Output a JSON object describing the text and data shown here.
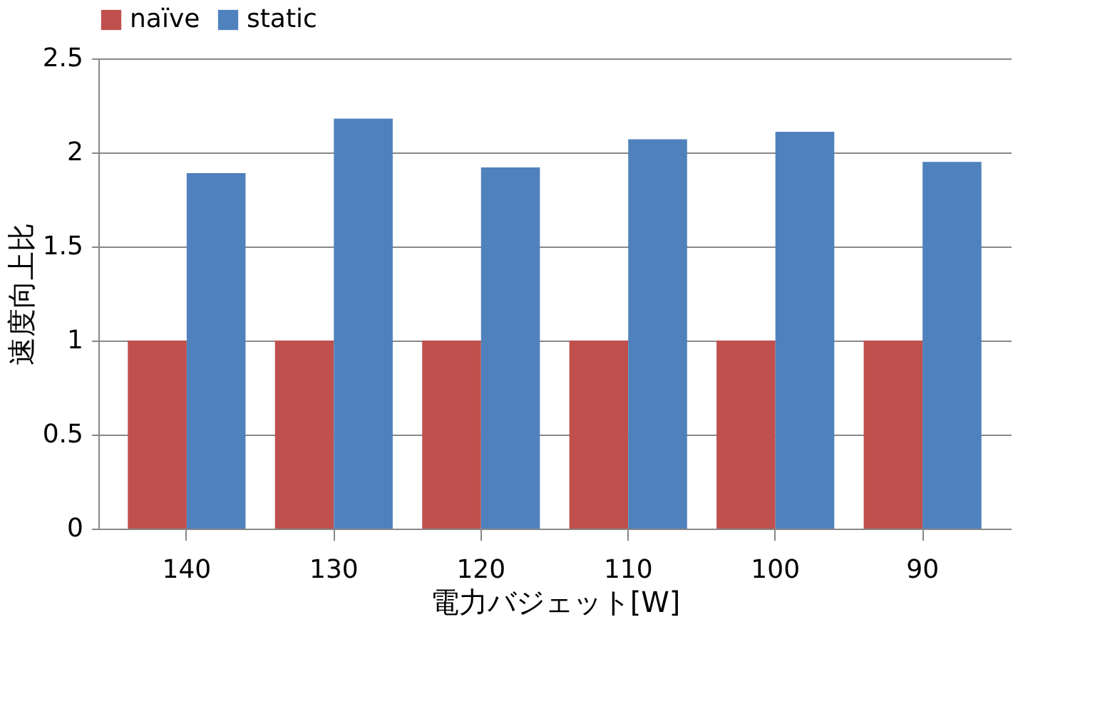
{
  "chart_data": {
    "type": "bar",
    "xlabel": "電力バジェット[W]",
    "ylabel": "速度向上比",
    "categories": [
      "140",
      "130",
      "120",
      "110",
      "100",
      "90"
    ],
    "series": [
      {
        "name": "naïve",
        "color": "#c0504d",
        "values": [
          1,
          1,
          1,
          1,
          1,
          1
        ]
      },
      {
        "name": "static",
        "color": "#4f81bd",
        "values": [
          1.89,
          2.18,
          1.92,
          2.07,
          2.11,
          1.95
        ]
      }
    ],
    "ylim": [
      0,
      2.5
    ],
    "yticks": [
      0,
      0.5,
      1,
      1.5,
      2,
      2.5
    ],
    "grid": "y",
    "legend": "top"
  }
}
